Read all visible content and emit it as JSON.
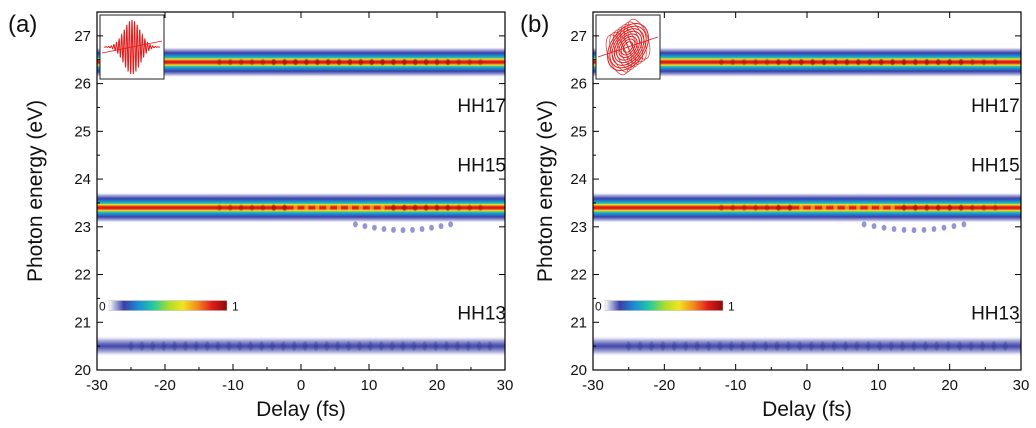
{
  "figure": {
    "panels": [
      {
        "tag": "(a)",
        "inset": "linear-pulse-icon",
        "xlabel": "Delay (fs)",
        "ylabel": "Photon energy (eV)",
        "harmonic_labels": [
          {
            "text": "HH17",
            "energy": 25.55
          },
          {
            "text": "HH15",
            "energy": 24.3
          },
          {
            "text": "HH13",
            "energy": 21.2
          }
        ],
        "colorbar": {
          "min_label": "0",
          "max_label": "1"
        }
      },
      {
        "tag": "(b)",
        "inset": "elliptical-pulse-icon",
        "xlabel": "Delay (fs)",
        "ylabel": "Photon energy (eV)",
        "harmonic_labels": [
          {
            "text": "HH17",
            "energy": 25.55
          },
          {
            "text": "HH15",
            "energy": 24.3
          },
          {
            "text": "HH13",
            "energy": 21.2
          }
        ],
        "colorbar": {
          "min_label": "0",
          "max_label": "1"
        }
      }
    ]
  },
  "colors": {
    "colormap": [
      "#ffffff",
      "#3a3fa8",
      "#1b8fd6",
      "#22c9a0",
      "#a6dd2e",
      "#f4e41e",
      "#f38a1d",
      "#e01b1b",
      "#8a0d0d"
    ],
    "inset_pulse": "#e01b1b"
  },
  "chart_data": [
    {
      "type": "heatmap",
      "title": "",
      "xlabel": "Delay (fs)",
      "ylabel": "Photon energy (eV)",
      "xlim": [
        -30,
        30
      ],
      "ylim": [
        20,
        27.5
      ],
      "xticks": [
        -30,
        -20,
        -10,
        0,
        10,
        20,
        30
      ],
      "yticks": [
        20,
        21,
        22,
        23,
        24,
        25,
        26,
        27
      ],
      "colorbar": {
        "min": 0,
        "max": 1
      },
      "bands": [
        {
          "name": "HH17",
          "center_energy": 26.45,
          "peak_intensity": 1.0
        },
        {
          "name": "HH15",
          "center_energy": 23.4,
          "peak_intensity": 1.0,
          "note_region": "modulation and split-off below band at delay 10 to 22 fs near 23.0 eV"
        },
        {
          "name": "HH13",
          "center_energy": 20.5,
          "peak_intensity": 0.25
        }
      ]
    },
    {
      "type": "heatmap",
      "title": "",
      "xlabel": "Delay (fs)",
      "ylabel": "Photon energy (eV)",
      "xlim": [
        -30,
        30
      ],
      "ylim": [
        20,
        27.5
      ],
      "xticks": [
        -30,
        -20,
        -10,
        0,
        10,
        20,
        30
      ],
      "yticks": [
        20,
        21,
        22,
        23,
        24,
        25,
        26,
        27
      ],
      "colorbar": {
        "min": 0,
        "max": 1
      },
      "bands": [
        {
          "name": "HH17",
          "center_energy": 26.45,
          "peak_intensity": 1.0
        },
        {
          "name": "HH15",
          "center_energy": 23.4,
          "peak_intensity": 1.0,
          "note_region": "intensity dip between 0 and 10 fs, split-off below band at delay 10 to 22 fs near 23.0 eV"
        },
        {
          "name": "HH13",
          "center_energy": 20.5,
          "peak_intensity": 0.25
        }
      ]
    }
  ]
}
